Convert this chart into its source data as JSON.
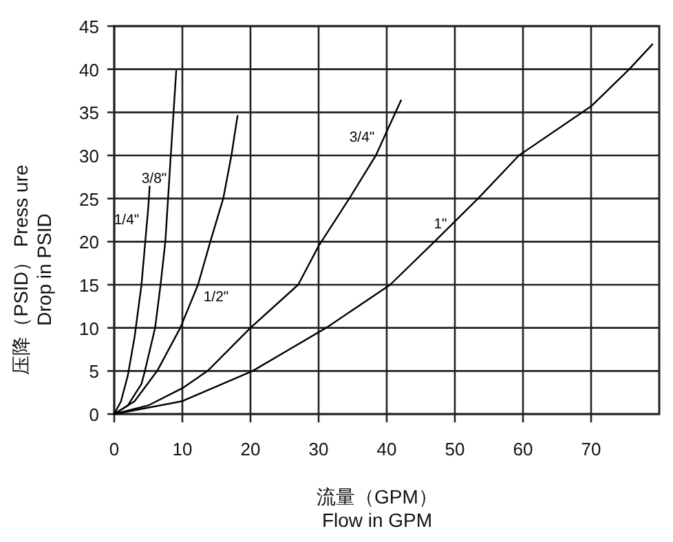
{
  "chart_data": {
    "type": "line",
    "xlabel": "流量（GPM） Flow in GPM",
    "ylabel": "压降（PSID） Press ure Drop in PSID",
    "xlim": [
      0,
      80
    ],
    "ylim": [
      0,
      45
    ],
    "xticks": [
      0,
      10,
      20,
      30,
      40,
      50,
      60,
      70
    ],
    "yticks": [
      0,
      5,
      10,
      15,
      20,
      25,
      30,
      35,
      40,
      45
    ],
    "grid": true,
    "marker": "none",
    "line_style": "solid",
    "series": [
      {
        "name": "1/4\"",
        "color": "#000000",
        "x": [
          0,
          1,
          2,
          3,
          4,
          5,
          5.2
        ],
        "values": [
          0,
          1.5,
          4.5,
          9,
          15,
          24,
          26.4
        ]
      },
      {
        "name": "3/8\"",
        "color": "#000000",
        "x": [
          0,
          2,
          4,
          4.5,
          6,
          6.8,
          7.5,
          8.3,
          9.1
        ],
        "values": [
          0,
          1,
          3.5,
          5,
          10,
          15,
          20,
          30,
          39.8
        ]
      },
      {
        "name": "1/2\"",
        "color": "#000000",
        "x": [
          0,
          3,
          6.3,
          9.7,
          12.3,
          14.1,
          16,
          17.2,
          18.1
        ],
        "values": [
          0,
          1.5,
          5,
          10,
          15,
          20,
          25,
          30,
          34.6
        ]
      },
      {
        "name": "3/4\"",
        "color": "#000000",
        "x": [
          0,
          5,
          10,
          13.7,
          20,
          27,
          30,
          34.5,
          38.4,
          42.1
        ],
        "values": [
          0,
          1,
          3,
          5,
          10,
          15,
          19.5,
          25,
          30,
          36.4
        ]
      },
      {
        "name": "1\"",
        "color": "#000000",
        "x": [
          0,
          10,
          20.3,
          31.1,
          40.5,
          47,
          53.4,
          59.4,
          70,
          75.6,
          79
        ],
        "values": [
          0,
          1.5,
          5,
          10,
          15,
          20,
          25,
          30,
          35.7,
          40,
          42.9
        ]
      }
    ]
  }
}
